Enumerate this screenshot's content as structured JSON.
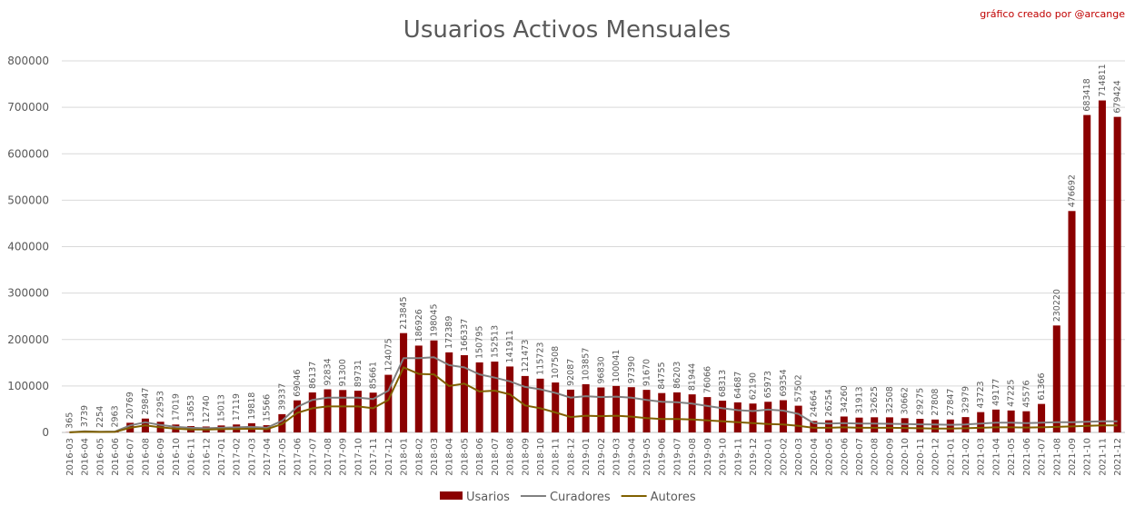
{
  "chart_data": {
    "type": "bar",
    "title": "Usuarios Activos Mensuales",
    "credit": "gráfico creado por @arcange",
    "ylim": [
      0,
      800000
    ],
    "yticks": [
      0,
      100000,
      200000,
      300000,
      400000,
      500000,
      600000,
      700000,
      800000
    ],
    "grid": true,
    "legend_position": "bottom",
    "colors": {
      "bars": "#8b0000",
      "curadores": "#808080",
      "autores": "#806000"
    },
    "categories": [
      "2016-03",
      "2016-04",
      "2016-05",
      "2016-06",
      "2016-07",
      "2016-08",
      "2016-09",
      "2016-10",
      "2016-11",
      "2016-12",
      "2017-01",
      "2017-02",
      "2017-03",
      "2017-04",
      "2017-05",
      "2017-06",
      "2017-07",
      "2017-08",
      "2017-09",
      "2017-10",
      "2017-11",
      "2017-12",
      "2018-01",
      "2018-02",
      "2018-03",
      "2018-04",
      "2018-05",
      "2018-06",
      "2018-07",
      "2018-08",
      "2018-09",
      "2018-10",
      "2018-11",
      "2018-12",
      "2019-01",
      "2019-02",
      "2019-03",
      "2019-04",
      "2019-05",
      "2019-06",
      "2019-07",
      "2019-08",
      "2019-09",
      "2019-10",
      "2019-11",
      "2019-12",
      "2020-01",
      "2020-02",
      "2020-03",
      "2020-04",
      "2020-05",
      "2020-06",
      "2020-07",
      "2020-08",
      "2020-09",
      "2020-10",
      "2020-11",
      "2020-12",
      "2021-01",
      "2021-02",
      "2021-03",
      "2021-04",
      "2021-05",
      "2021-06",
      "2021-07",
      "2021-08",
      "2021-09",
      "2021-10",
      "2021-11",
      "2021-12"
    ],
    "series": [
      {
        "name": "Usarios",
        "kind": "bar",
        "values": [
          365,
          3739,
          2254,
          2963,
          20769,
          29847,
          22953,
          17019,
          13653,
          12740,
          15013,
          17119,
          19818,
          15566,
          39337,
          69046,
          86137,
          92834,
          91300,
          89731,
          85661,
          124075,
          213845,
          186926,
          198045,
          172389,
          166337,
          150795,
          152513,
          141911,
          121473,
          115723,
          107508,
          92087,
          103857,
          96830,
          100041,
          97390,
          91670,
          84755,
          86203,
          81944,
          76066,
          68313,
          64687,
          62190,
          65973,
          69354,
          57502,
          24664,
          26254,
          34260,
          31913,
          32625,
          32508,
          30662,
          29275,
          27808,
          27847,
          32979,
          43723,
          49177,
          47225,
          45576,
          61366,
          230220,
          476692,
          683418,
          714811,
          679424
        ]
      },
      {
        "name": "Curadores",
        "kind": "line",
        "values": [
          200,
          2500,
          1500,
          2000,
          15000,
          22000,
          16000,
          12000,
          10000,
          9000,
          10000,
          11000,
          12000,
          10000,
          25000,
          55000,
          70000,
          75000,
          75000,
          75000,
          72000,
          90000,
          160000,
          160000,
          162000,
          145000,
          140000,
          125000,
          118000,
          110000,
          98000,
          93000,
          85000,
          75000,
          78000,
          76000,
          77000,
          75000,
          70000,
          66000,
          65000,
          62000,
          57000,
          52000,
          48000,
          46000,
          49000,
          47000,
          40000,
          20000,
          19000,
          20000,
          19000,
          19000,
          18500,
          18000,
          17500,
          17000,
          16500,
          17000,
          19000,
          21000,
          21000,
          20000,
          21000,
          22000,
          22000,
          23000,
          24000,
          24000
        ]
      },
      {
        "name": "Autores",
        "kind": "line",
        "values": [
          100,
          1500,
          900,
          1200,
          10000,
          15000,
          11000,
          8000,
          6500,
          6000,
          7000,
          7500,
          8000,
          7000,
          18000,
          42000,
          52000,
          56000,
          56000,
          56000,
          52000,
          70000,
          140000,
          126000,
          125000,
          100000,
          105000,
          88000,
          90000,
          82000,
          58000,
          52000,
          43000,
          33000,
          36000,
          35000,
          36000,
          34000,
          31000,
          29000,
          29000,
          28000,
          26000,
          24000,
          22000,
          20000,
          18000,
          17000,
          14000,
          10000,
          10000,
          11000,
          10000,
          10000,
          10000,
          9500,
          9000,
          8500,
          8500,
          9000,
          10000,
          11000,
          11000,
          10500,
          11000,
          12000,
          13000,
          14000,
          15000,
          15000
        ]
      }
    ]
  }
}
